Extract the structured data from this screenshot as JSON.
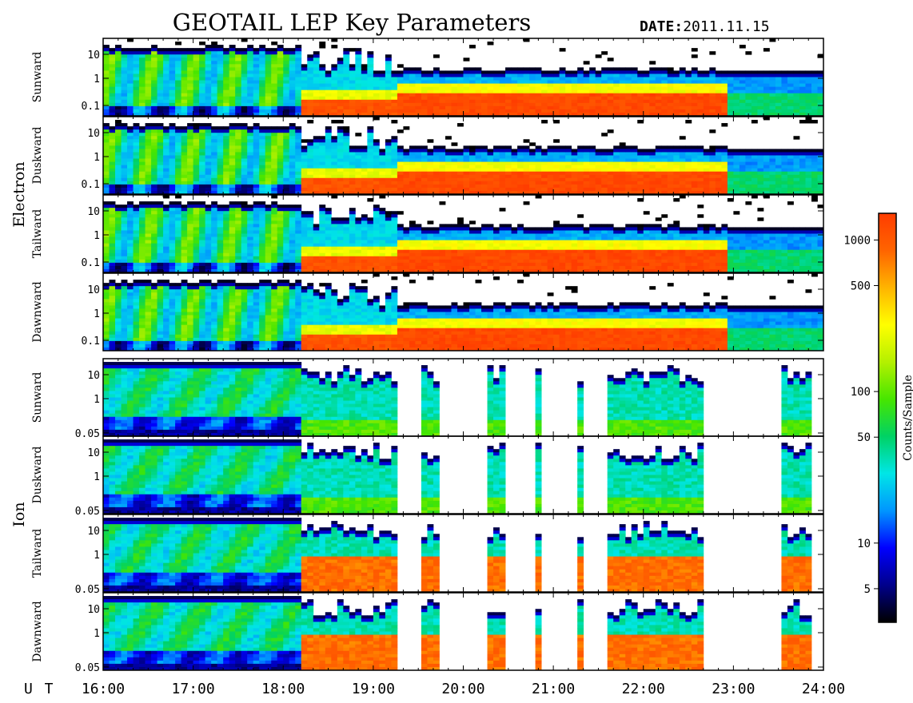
{
  "title": "GEOTAIL LEP Key Parameters",
  "date_label": "DATE:",
  "date_value": "2011.11.15",
  "x_axis_label": "U T",
  "chart_data": {
    "type": "heatmap",
    "x_ticks": [
      "16:00",
      "17:00",
      "18:00",
      "19:00",
      "20:00",
      "21:00",
      "22:00",
      "23:00",
      "24:00"
    ],
    "x_range_hours": [
      16,
      24
    ],
    "groups": [
      {
        "name": "Electron",
        "y_tick_labels": [
          "10",
          "1",
          "0.1"
        ],
        "y_tick_values": [
          10,
          1,
          0.1
        ],
        "panels": [
          "Sunward",
          "Duskward",
          "Tailward",
          "Dawnward"
        ]
      },
      {
        "name": "Ion",
        "y_tick_labels": [
          "10",
          "1",
          "0.05"
        ],
        "y_tick_values": [
          10,
          1,
          0.05
        ],
        "panels": [
          "Sunward",
          "Duskward",
          "Tailward",
          "Dawnward"
        ]
      }
    ],
    "colorbar": {
      "label": "Counts/Sample",
      "scale": "log",
      "range": [
        3,
        1500
      ],
      "tick_labels": [
        "1000",
        "500",
        "100",
        "50",
        "10",
        "5"
      ],
      "tick_values": [
        1000,
        500,
        100,
        50,
        10,
        5
      ],
      "colors": [
        "#000000",
        "#00008b",
        "#0000ff",
        "#0096ff",
        "#00e6e6",
        "#00d264",
        "#46e600",
        "#b4f000",
        "#ffff00",
        "#ffb400",
        "#ff6400",
        "#ff3c00"
      ]
    }
  }
}
